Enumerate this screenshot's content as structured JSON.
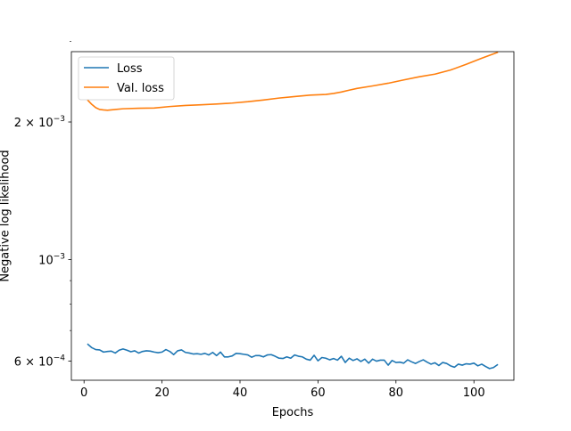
{
  "chart_data": {
    "type": "line",
    "title": "",
    "xlabel": "Epochs",
    "ylabel": "Negative log likelihood",
    "xlim": [
      -3.25,
      110.25
    ],
    "ylim": [
      0.000545,
      0.00285
    ],
    "yscale": "log",
    "grid": false,
    "legend_position": "top-left",
    "x_ticks": [
      {
        "value": 0,
        "label": "0"
      },
      {
        "value": 20,
        "label": "20"
      },
      {
        "value": 40,
        "label": "40"
      },
      {
        "value": 60,
        "label": "60"
      },
      {
        "value": 80,
        "label": "80"
      },
      {
        "value": 100,
        "label": "100"
      }
    ],
    "y_ticks": [
      {
        "value": 0.0006,
        "mantissa": "6",
        "op": "×",
        "base": "10",
        "exp": "−4"
      },
      {
        "value": 0.001,
        "mantissa": "",
        "op": "",
        "base": "10",
        "exp": "−3"
      },
      {
        "value": 0.002,
        "mantissa": "2",
        "op": "×",
        "base": "10",
        "exp": "−3"
      }
    ],
    "y_minor_ticks": [
      0.0007,
      0.0008,
      0.0009,
      0.003
    ],
    "series": [
      {
        "name": "Loss",
        "color": "#1f77b4",
        "x": [
          1,
          2,
          3,
          4,
          5,
          6,
          7,
          8,
          9,
          10,
          11,
          12,
          13,
          14,
          15,
          16,
          17,
          18,
          19,
          20,
          21,
          22,
          23,
          24,
          25,
          26,
          27,
          28,
          29,
          30,
          31,
          32,
          33,
          34,
          35,
          36,
          37,
          38,
          39,
          40,
          41,
          42,
          43,
          44,
          45,
          46,
          47,
          48,
          49,
          50,
          51,
          52,
          53,
          54,
          55,
          56,
          57,
          58,
          59,
          60,
          61,
          62,
          63,
          64,
          65,
          66,
          67,
          68,
          69,
          70,
          71,
          72,
          73,
          74,
          75,
          76,
          77,
          78,
          79,
          80,
          81,
          82,
          83,
          84,
          85,
          86,
          87,
          88,
          89,
          90,
          91,
          92,
          93,
          94,
          95,
          96,
          97,
          98,
          99,
          100,
          101,
          102,
          103,
          104,
          105,
          106
        ],
        "values": [
          0.000653,
          0.000642,
          0.000636,
          0.000635,
          0.000628,
          0.00063,
          0.000631,
          0.000625,
          0.000634,
          0.000638,
          0.000634,
          0.000629,
          0.000632,
          0.000625,
          0.00063,
          0.000632,
          0.000631,
          0.000628,
          0.000626,
          0.000628,
          0.000636,
          0.00063,
          0.00062,
          0.000632,
          0.000635,
          0.000627,
          0.000625,
          0.000622,
          0.000623,
          0.000621,
          0.000624,
          0.000619,
          0.000627,
          0.000617,
          0.000628,
          0.000613,
          0.000613,
          0.000616,
          0.000624,
          0.000623,
          0.000621,
          0.000619,
          0.000612,
          0.000617,
          0.000617,
          0.000613,
          0.000619,
          0.00062,
          0.000615,
          0.000609,
          0.000608,
          0.000613,
          0.000609,
          0.000619,
          0.000615,
          0.000613,
          0.000606,
          0.000603,
          0.000618,
          0.000601,
          0.000611,
          0.000609,
          0.000604,
          0.000608,
          0.000603,
          0.000615,
          0.000596,
          0.000609,
          0.000602,
          0.000607,
          0.000599,
          0.000606,
          0.000594,
          0.000606,
          0.0006,
          0.000603,
          0.000603,
          0.000588,
          0.000602,
          0.000596,
          0.000597,
          0.000594,
          0.000604,
          0.000598,
          0.000593,
          0.000599,
          0.000604,
          0.000597,
          0.000591,
          0.000595,
          0.000587,
          0.000596,
          0.000593,
          0.000586,
          0.000582,
          0.000591,
          0.000588,
          0.000592,
          0.000591,
          0.000594,
          0.000586,
          0.000591,
          0.000584,
          0.000578,
          0.000581,
          0.000589
        ]
      },
      {
        "name": "Val. loss",
        "color": "#ff7f0e",
        "x": [
          1,
          2,
          3,
          4,
          5,
          6,
          8,
          10,
          14,
          18,
          22,
          26,
          30,
          34,
          38,
          42,
          46,
          50,
          54,
          58,
          62,
          64,
          66,
          68,
          70,
          74,
          78,
          82,
          86,
          90,
          94,
          98,
          102,
          106
        ],
        "values": [
          0.00223,
          0.002185,
          0.00215,
          0.00213,
          0.002125,
          0.002122,
          0.00213,
          0.002138,
          0.002143,
          0.002146,
          0.002162,
          0.002174,
          0.002181,
          0.002189,
          0.0022,
          0.002215,
          0.002234,
          0.002256,
          0.002273,
          0.00229,
          0.002298,
          0.002309,
          0.002326,
          0.002348,
          0.002368,
          0.002398,
          0.002431,
          0.002472,
          0.002512,
          0.002545,
          0.002598,
          0.002674,
          0.002758,
          0.002839
        ]
      }
    ]
  }
}
